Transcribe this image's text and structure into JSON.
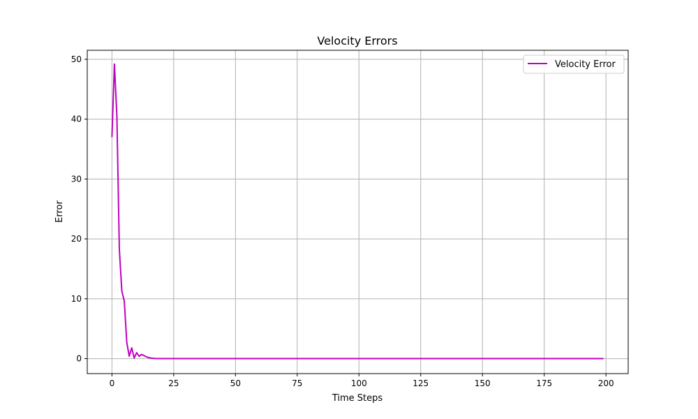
{
  "chart_data": {
    "type": "line",
    "title": "Velocity Errors",
    "xlabel": "Time Steps",
    "ylabel": "Error",
    "xlim": [
      -10,
      209
    ],
    "ylim": [
      -2.5,
      51.5
    ],
    "xticks": [
      0,
      25,
      50,
      75,
      100,
      125,
      150,
      175,
      200
    ],
    "yticks": [
      0,
      10,
      20,
      30,
      40,
      50
    ],
    "grid": true,
    "legend_position": "top-right",
    "series": [
      {
        "name": "Velocity Error",
        "color": "#bf00bf",
        "x": [
          0,
          1,
          2,
          3,
          4,
          5,
          6,
          7,
          8,
          9,
          10,
          11,
          12,
          13,
          14,
          15,
          16,
          17,
          18,
          19,
          20,
          25,
          50,
          75,
          100,
          125,
          150,
          175,
          199
        ],
        "y": [
          37,
          49.2,
          40.5,
          18.2,
          11.3,
          9.6,
          2.7,
          0.4,
          1.8,
          0.1,
          1.0,
          0.4,
          0.7,
          0.5,
          0.3,
          0.15,
          0.08,
          0.04,
          0.02,
          0.01,
          0,
          0,
          0,
          0,
          0,
          0,
          0,
          0,
          0
        ]
      }
    ]
  }
}
